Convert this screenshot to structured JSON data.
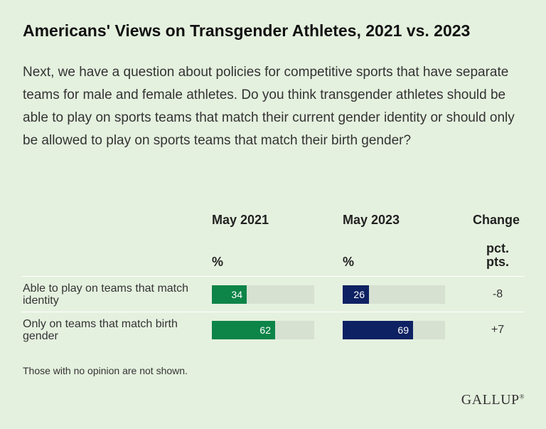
{
  "title": "Americans' Views on Transgender Athletes, 2021 vs. 2023",
  "subtitle": "Next, we have a question about policies for competitive sports that have separate teams for male and female athletes. Do you think transgender athletes should be able to play on sports teams that match their current gender identity or should only be allowed to play on sports teams that match their birth gender?",
  "note": "Those with no opinion are not shown.",
  "logo": "GALLUP",
  "logo_mark": "®",
  "colors": {
    "series_2021": "#0d8448",
    "series_2023": "#0e2162",
    "track": "#d6e1d2",
    "background": "#e5f1df"
  },
  "chart_data": {
    "type": "bar",
    "title": "Americans' Views on Transgender Athletes, 2021 vs. 2023",
    "categories": [
      "Able to play on teams that match identity",
      "Only on teams that match birth gender"
    ],
    "series": [
      {
        "name": "May 2021",
        "unit": "%",
        "values": [
          34,
          62
        ]
      },
      {
        "name": "May 2023",
        "unit": "%",
        "values": [
          26,
          69
        ]
      }
    ],
    "change": {
      "name": "Change",
      "unit": "pct. pts.",
      "values": [
        "-8",
        "+7"
      ]
    },
    "ylim": [
      0,
      100
    ]
  }
}
